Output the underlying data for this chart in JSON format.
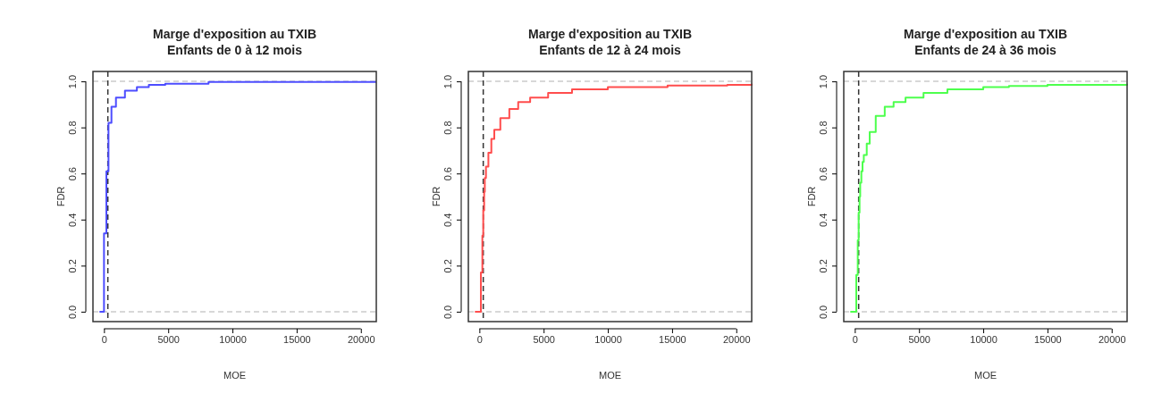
{
  "chart_data": [
    {
      "type": "step",
      "title": "Marge d'exposition au TXIB\nEnfants de 0 à 12 mois",
      "xlabel": "MOE",
      "ylabel": "FDR",
      "xlim": [
        -860,
        21200
      ],
      "ylim": [
        -0.043,
        1.043
      ],
      "xticks": [
        0,
        5000,
        10000,
        15000,
        20000
      ],
      "yticks": [
        {
          "value": 0,
          "label": "0.0"
        },
        {
          "value": 0.2,
          "label": "0.2"
        },
        {
          "value": 0.4,
          "label": "0.4"
        },
        {
          "value": 0.6,
          "label": "0.6"
        },
        {
          "value": 0.8,
          "label": "0.8"
        },
        {
          "value": 1,
          "label": "1.0"
        }
      ],
      "series": [
        {
          "color": "#4d4dff",
          "x": [
            -350,
            0,
            186,
            350,
            580,
            930,
            1630,
            2560,
            3490,
            4770,
            8140,
            21200
          ],
          "values": [
            0,
            0.34,
            0.61,
            0.82,
            0.89,
            0.93,
            0.96,
            0.975,
            0.985,
            0.99,
            0.997,
            0.997
          ]
        }
      ],
      "ref_lines": [
        {
          "axis": "y",
          "value": 0,
          "color": "#cccccc",
          "line_style": "dashed"
        },
        {
          "axis": "y",
          "value": 1,
          "color": "#cccccc",
          "line_style": "dashed"
        },
        {
          "axis": "x",
          "value": 300,
          "color": "#333333",
          "line_style": "dashed"
        }
      ]
    },
    {
      "type": "step",
      "title": "Marge d'exposition au TXIB\nEnfants de 12 à 24 mois",
      "xlabel": "MOE",
      "ylabel": "FDR",
      "xlim": [
        -860,
        21200
      ],
      "ylim": [
        -0.043,
        1.043
      ],
      "xticks": [
        0,
        5000,
        10000,
        15000,
        20000
      ],
      "yticks": [
        {
          "value": 0,
          "label": "0.0"
        },
        {
          "value": 0.2,
          "label": "0.2"
        },
        {
          "value": 0.4,
          "label": "0.4"
        },
        {
          "value": 0.6,
          "label": "0.6"
        },
        {
          "value": 0.8,
          "label": "0.8"
        },
        {
          "value": 1,
          "label": "1.0"
        }
      ],
      "series": [
        {
          "color": "#ff4d4d",
          "x": [
            -350,
            116,
            230,
            300,
            370,
            420,
            510,
            700,
            930,
            1160,
            1630,
            2330,
            3020,
            3950,
            5350,
            7210,
            10000,
            14650,
            19300,
            21200
          ],
          "values": [
            0,
            0.17,
            0.33,
            0.44,
            0.52,
            0.58,
            0.63,
            0.69,
            0.75,
            0.79,
            0.84,
            0.88,
            0.91,
            0.93,
            0.95,
            0.965,
            0.975,
            0.982,
            0.985,
            0.99
          ]
        }
      ],
      "ref_lines": [
        {
          "axis": "y",
          "value": 0,
          "color": "#cccccc",
          "line_style": "dashed"
        },
        {
          "axis": "y",
          "value": 1,
          "color": "#cccccc",
          "line_style": "dashed"
        },
        {
          "axis": "x",
          "value": 300,
          "color": "#333333",
          "line_style": "dashed"
        }
      ]
    },
    {
      "type": "step",
      "title": "Marge d'exposition au TXIB\nEnfants de 24 à 36 mois",
      "xlabel": "MOE",
      "ylabel": "FDR",
      "xlim": [
        -860,
        21200
      ],
      "ylim": [
        -0.043,
        1.043
      ],
      "xticks": [
        0,
        5000,
        10000,
        15000,
        20000
      ],
      "yticks": [
        {
          "value": 0,
          "label": "0.0"
        },
        {
          "value": 0.2,
          "label": "0.2"
        },
        {
          "value": 0.4,
          "label": "0.4"
        },
        {
          "value": 0.6,
          "label": "0.6"
        },
        {
          "value": 0.8,
          "label": "0.8"
        },
        {
          "value": 1,
          "label": "1.0"
        }
      ],
      "series": [
        {
          "color": "#4dff4d",
          "x": [
            -350,
            116,
            230,
            300,
            370,
            420,
            510,
            600,
            700,
            930,
            1160,
            1630,
            2330,
            3020,
            3950,
            5350,
            7210,
            10000,
            12000,
            15000,
            19300,
            21200
          ],
          "values": [
            0,
            0.16,
            0.31,
            0.43,
            0.5,
            0.56,
            0.61,
            0.65,
            0.68,
            0.73,
            0.78,
            0.85,
            0.89,
            0.91,
            0.93,
            0.95,
            0.965,
            0.975,
            0.98,
            0.985,
            0.985,
            0.99
          ]
        }
      ],
      "ref_lines": [
        {
          "axis": "y",
          "value": 0,
          "color": "#cccccc",
          "line_style": "dashed"
        },
        {
          "axis": "y",
          "value": 1,
          "color": "#cccccc",
          "line_style": "dashed"
        },
        {
          "axis": "x",
          "value": 300,
          "color": "#333333",
          "line_style": "dashed"
        }
      ]
    }
  ]
}
